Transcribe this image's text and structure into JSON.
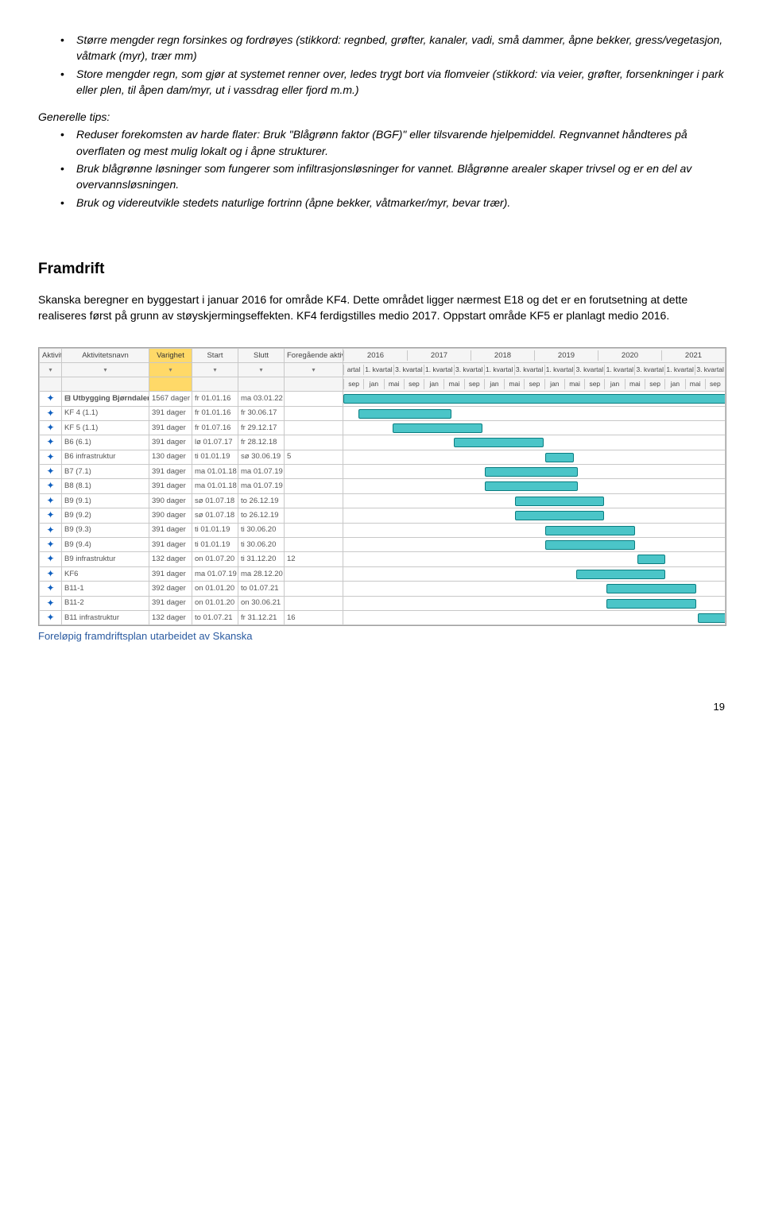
{
  "bullets_top": [
    "Større mengder regn forsinkes og fordrøyes (stikkord: regnbed, grøfter, kanaler, vadi, små dammer, åpne bekker, gress/vegetasjon, våtmark (myr), trær mm)",
    "Store mengder regn, som gjør at systemet renner over, ledes trygt bort via flomveier (stikkord: via veier, grøfter, forsenkninger i park eller plen, til åpen dam/myr, ut i vassdrag eller fjord m.m.)"
  ],
  "tips_heading": "Generelle tips:",
  "tips": [
    "Reduser forekomsten av harde flater: Bruk \"Blågrønn faktor (BGF)\" eller tilsvarende hjelpemiddel. Regnvannet håndteres på overflaten og mest mulig lokalt og i åpne strukturer.",
    "Bruk blågrønne løsninger som fungerer som infiltrasjonsløsninger for vannet. Blågrønne arealer skaper trivsel og er en del av overvannsløsningen.",
    "Bruk og videreutvikle stedets naturlige fortrinn (åpne bekker, våtmarker/myr, bevar trær)."
  ],
  "section_heading": "Framdrift",
  "body_text": "Skanska beregner en byggestart i januar 2016 for område KF4. Dette området ligger nærmest E18 og det er en forutsetning at dette realiseres først på grunn av støyskjermingseffekten.  KF4 ferdigstilles medio 2017.  Oppstart område KF5 er planlagt medio 2016.",
  "caption": "Foreløpig framdriftsplan utarbeidet av Skanska",
  "page_number": "19",
  "gantt": {
    "headers_main": [
      "Aktivite",
      "Aktivitetsnavn",
      "Varighet",
      "Start",
      "Slutt",
      "Foregående aktiviteter"
    ],
    "highlight_col": "Varighet",
    "years": [
      "2016",
      "2017",
      "2018",
      "2019",
      "2020",
      "2021"
    ],
    "quarters_per_year": [
      "1. kvartal",
      "3. kvartal"
    ],
    "months_row": [
      "sep",
      "jan",
      "mai",
      "sep",
      "jan",
      "mai",
      "sep",
      "jan",
      "mai",
      "sep",
      "jan",
      "mai",
      "sep",
      "jan",
      "mai",
      "sep",
      "jan",
      "mai",
      "sep"
    ],
    "first_q": "artal",
    "rows": [
      {
        "name": "Utbygging Bjørndalen",
        "dur": "1567 dager",
        "start": "fr 01.01.16",
        "end": "ma 03.01.22",
        "pred": "",
        "expand": true,
        "bar": [
          0,
          100
        ]
      },
      {
        "name": "KF 4 (1.1)",
        "dur": "391 dager",
        "start": "fr 01.01.16",
        "end": "fr 30.06.17",
        "pred": "",
        "bar": [
          4,
          28
        ]
      },
      {
        "name": "KF 5 (1.1)",
        "dur": "391 dager",
        "start": "fr 01.07.16",
        "end": "fr 29.12.17",
        "pred": "",
        "bar": [
          13,
          36
        ]
      },
      {
        "name": "B6 (6.1)",
        "dur": "391 dager",
        "start": "lø 01.07.17",
        "end": "fr 28.12.18",
        "pred": "",
        "bar": [
          29,
          52
        ]
      },
      {
        "name": "B6 infrastruktur",
        "dur": "130 dager",
        "start": "ti 01.01.19",
        "end": "sø 30.06.19",
        "pred": "5",
        "bar": [
          53,
          60
        ]
      },
      {
        "name": "B7 (7.1)",
        "dur": "391 dager",
        "start": "ma 01.01.18",
        "end": "ma 01.07.19",
        "pred": "",
        "bar": [
          37,
          61
        ]
      },
      {
        "name": "B8 (8.1)",
        "dur": "391 dager",
        "start": "ma 01.01.18",
        "end": "ma 01.07.19",
        "pred": "",
        "bar": [
          37,
          61
        ]
      },
      {
        "name": "B9 (9.1)",
        "dur": "390 dager",
        "start": "sø 01.07.18",
        "end": "to 26.12.19",
        "pred": "",
        "bar": [
          45,
          68
        ]
      },
      {
        "name": "B9 (9.2)",
        "dur": "390 dager",
        "start": "sø 01.07.18",
        "end": "to 26.12.19",
        "pred": "",
        "bar": [
          45,
          68
        ]
      },
      {
        "name": "B9 (9.3)",
        "dur": "391 dager",
        "start": "ti 01.01.19",
        "end": "ti 30.06.20",
        "pred": "",
        "bar": [
          53,
          76
        ]
      },
      {
        "name": "B9 (9.4)",
        "dur": "391 dager",
        "start": "ti 01.01.19",
        "end": "ti 30.06.20",
        "pred": "",
        "bar": [
          53,
          76
        ]
      },
      {
        "name": "B9 infrastruktur",
        "dur": "132 dager",
        "start": "on 01.07.20",
        "end": "ti 31.12.20",
        "pred": "12",
        "bar": [
          77,
          84
        ]
      },
      {
        "name": "KF6",
        "dur": "391 dager",
        "start": "ma 01.07.19",
        "end": "ma 28.12.20",
        "pred": "",
        "bar": [
          61,
          84
        ]
      },
      {
        "name": "B11-1",
        "dur": "392 dager",
        "start": "on 01.01.20",
        "end": "to 01.07.21",
        "pred": "",
        "bar": [
          69,
          92
        ]
      },
      {
        "name": "B11-2",
        "dur": "391 dager",
        "start": "on 01.01.20",
        "end": "on 30.06.21",
        "pred": "",
        "bar": [
          69,
          92
        ]
      },
      {
        "name": "B11 infrastruktur",
        "dur": "132 dager",
        "start": "to 01.07.21",
        "end": "fr 31.12.21",
        "pred": "16",
        "bar": [
          93,
          100
        ]
      }
    ],
    "bar_color": "#4bc5c8",
    "bar_border": "#0a7d80"
  }
}
